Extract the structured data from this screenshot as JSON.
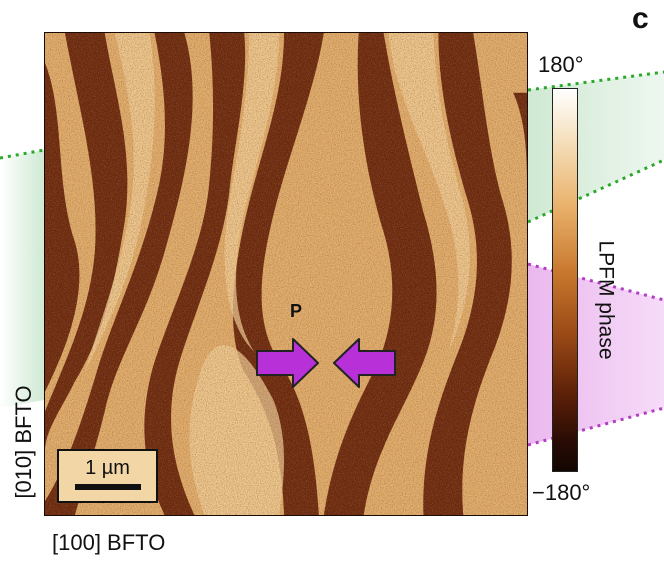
{
  "panel_label": "c",
  "polarization_label": "P",
  "scale_bar_label": "1 µm",
  "colorbar": {
    "max_label": "180°",
    "min_label": "−180°",
    "title": "LPFM phase"
  },
  "axis_labels": {
    "vertical": "[010] BFTO",
    "horizontal": "[100] BFTO"
  },
  "colors": {
    "domain_light": "#e8b777",
    "domain_dark": "#5a1e08",
    "arrow_fill": "#b830d8",
    "green_region": "#d5ecd8",
    "green_dots": "#2aa82a",
    "purple_region": "#f0c4f4",
    "purple_dots": "#b23cc4"
  }
}
